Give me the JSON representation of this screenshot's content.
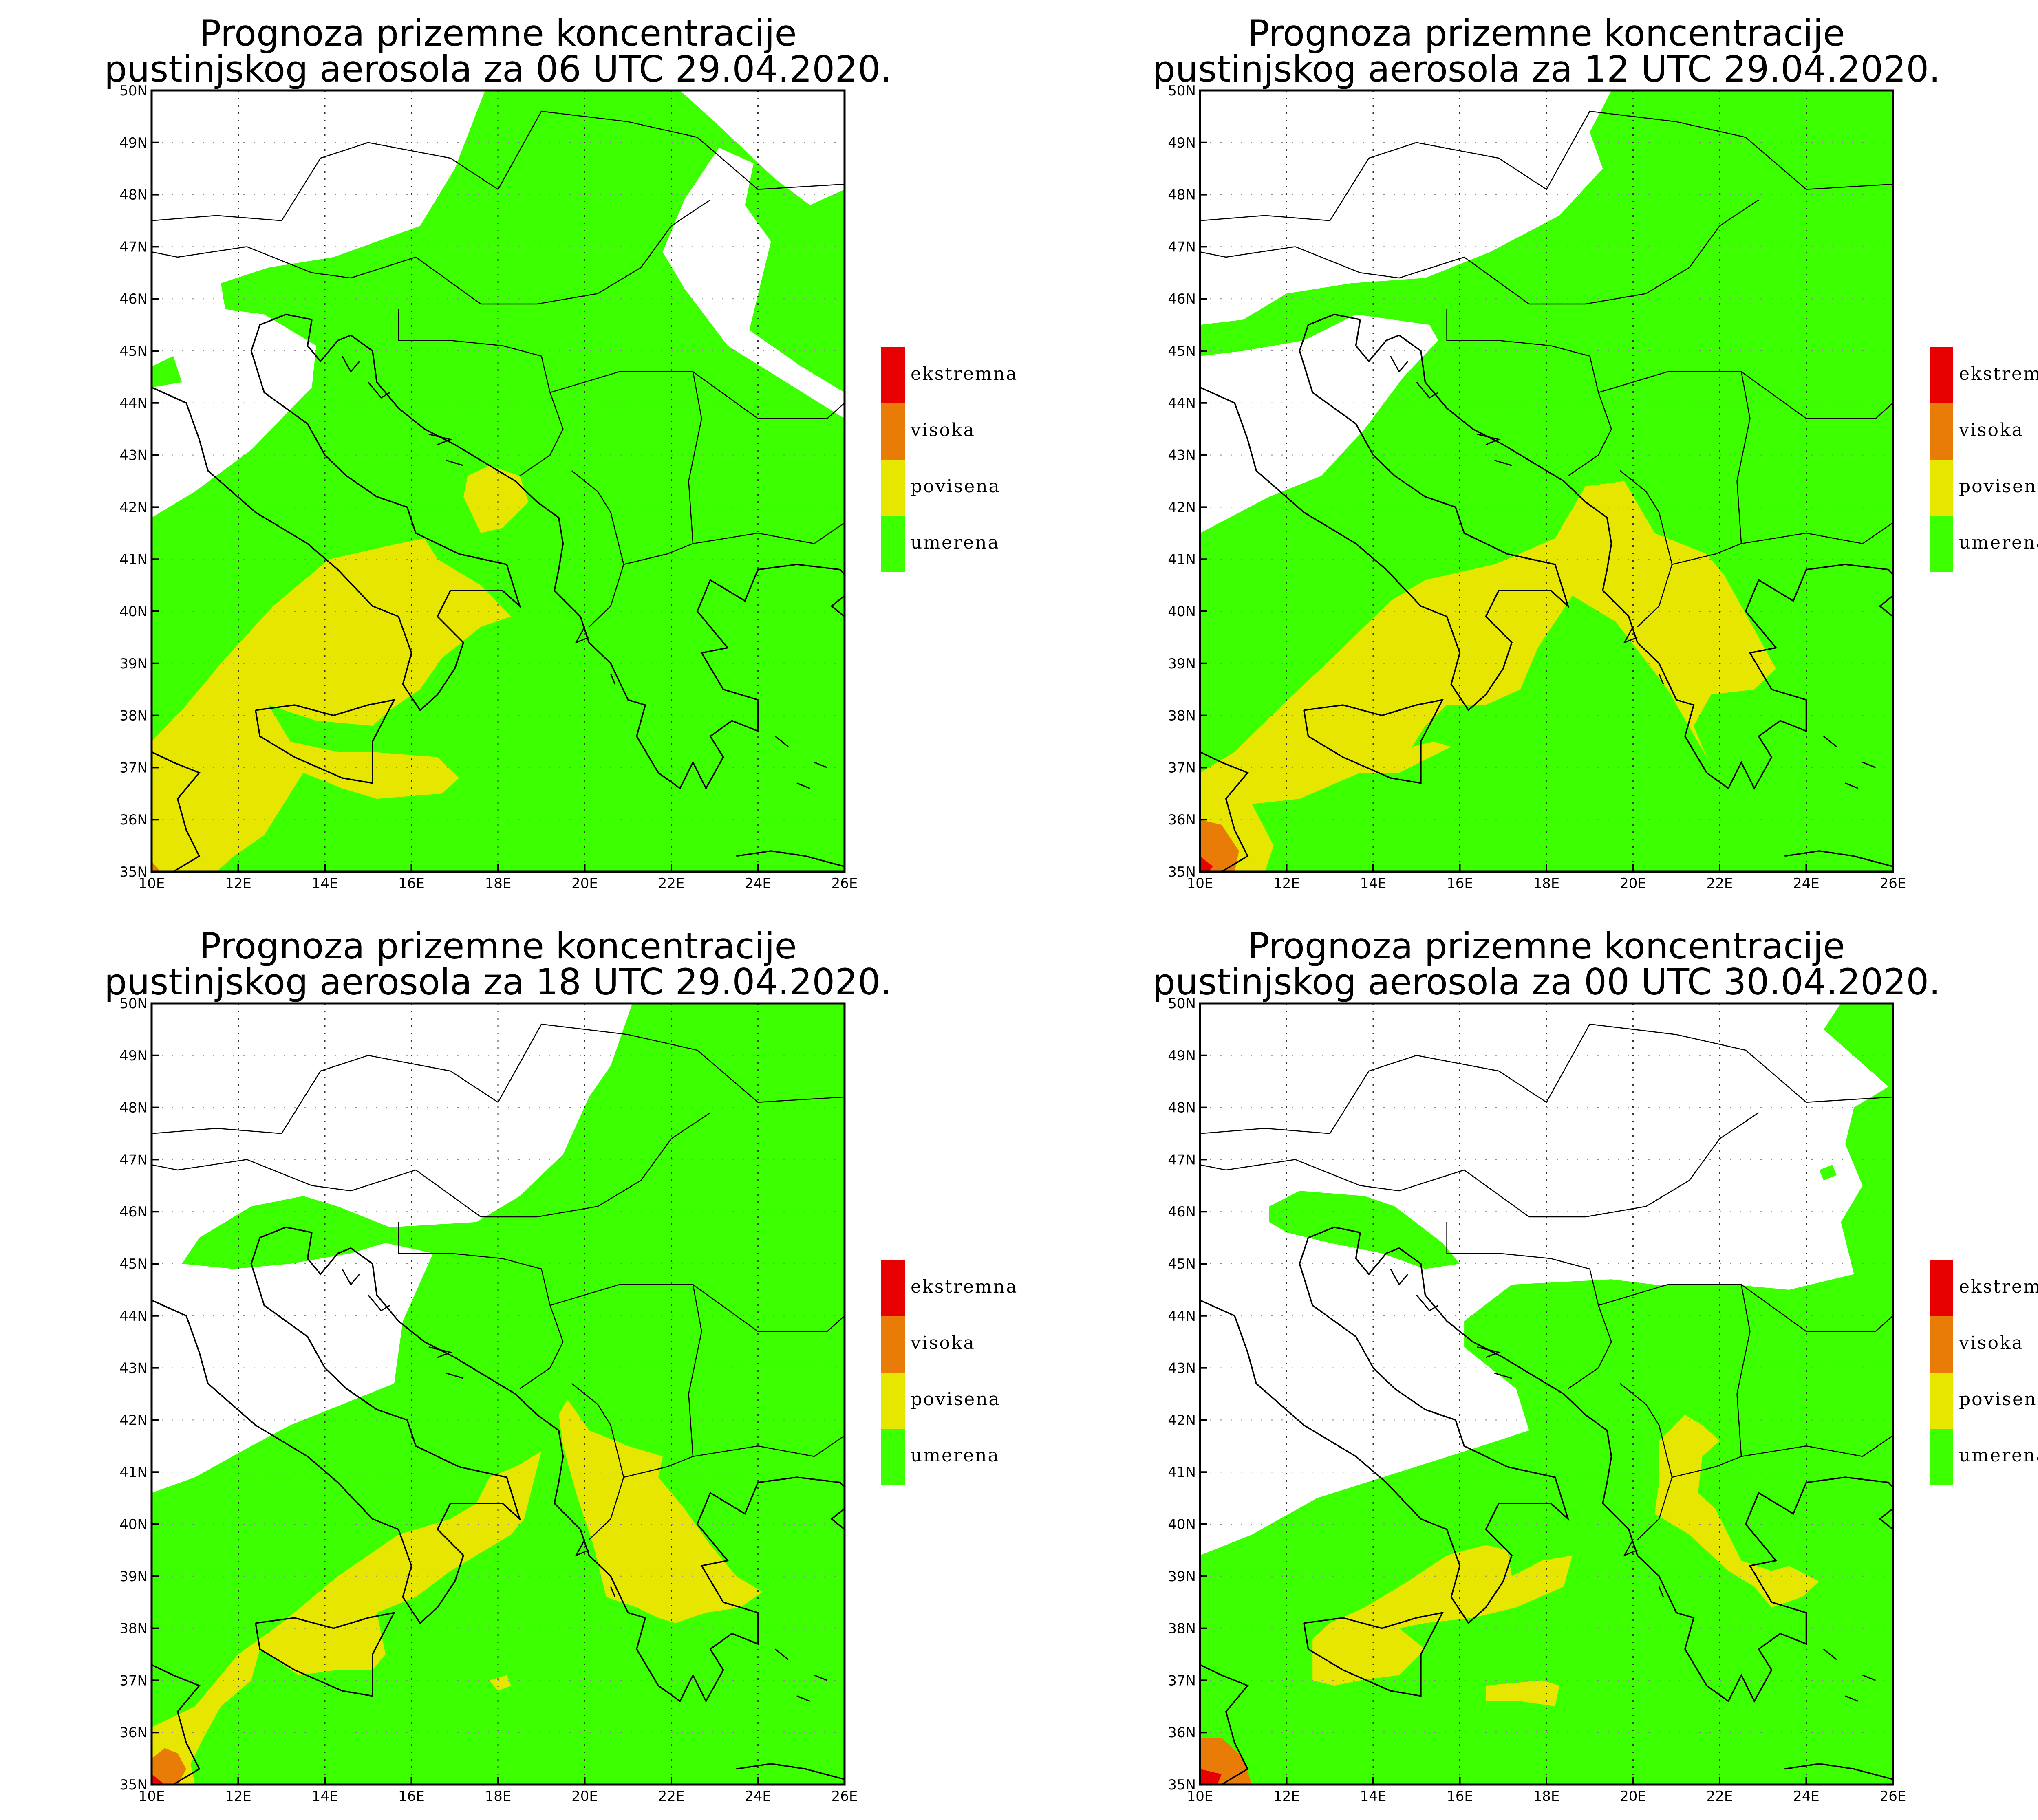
{
  "colors": {
    "umerena": "#3cff00",
    "povisena": "#e6e600",
    "visoka": "#e87c06",
    "ekstremna": "#e60000",
    "background": "#ffffff",
    "borders": "#000000"
  },
  "legend": [
    {
      "key": "ekstremna",
      "label": "ekstremna"
    },
    {
      "key": "visoka",
      "label": "visoka"
    },
    {
      "key": "povisena",
      "label": "povisena"
    },
    {
      "key": "umerena",
      "label": "umerena"
    }
  ],
  "axes": {
    "x_ticks": [
      "10E",
      "12E",
      "14E",
      "16E",
      "18E",
      "20E",
      "22E",
      "24E",
      "26E"
    ],
    "y_ticks": [
      "35N",
      "36N",
      "37N",
      "38N",
      "39N",
      "40N",
      "41N",
      "42N",
      "43N",
      "44N",
      "45N",
      "46N",
      "47N",
      "48N",
      "49N",
      "50N"
    ],
    "lon_range": [
      10,
      26
    ],
    "lat_range": [
      35,
      50
    ]
  },
  "maps": [
    {
      "title_line1": "Prognoza prizemne koncentracije",
      "title_line2": "pustinjskog aerosola za 06 UTC 29.04.2020."
    },
    {
      "title_line1": "Prognoza prizemne koncentracije",
      "title_line2": "pustinjskog aerosola za 12 UTC 29.04.2020."
    },
    {
      "title_line1": "Prognoza prizemne koncentracije",
      "title_line2": "pustinjskog aerosola za 18 UTC 29.04.2020."
    },
    {
      "title_line1": "Prognoza prizemne koncentracije",
      "title_line2": "pustinjskog aerosola za 00 UTC 30.04.2020."
    }
  ]
}
